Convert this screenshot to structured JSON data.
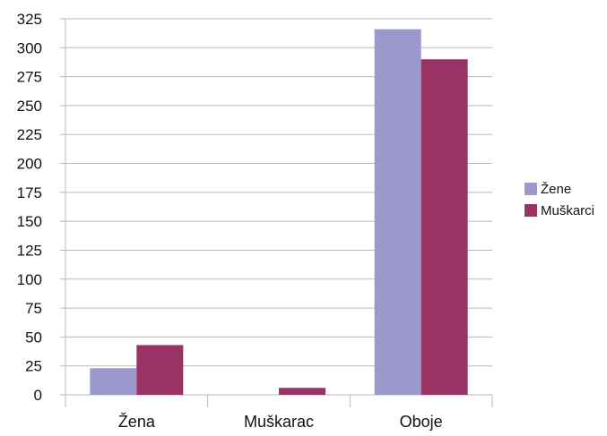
{
  "chart_data": {
    "type": "bar",
    "categories": [
      "Žena",
      "Muškarac",
      "Oboje"
    ],
    "series": [
      {
        "name": "Žene",
        "values": [
          23,
          0,
          316
        ],
        "color": "#9b99cc"
      },
      {
        "name": "Muškarci",
        "values": [
          43,
          6,
          290
        ],
        "color": "#993366"
      }
    ],
    "ylim": [
      0,
      325
    ],
    "yticks": [
      0,
      25,
      50,
      75,
      100,
      125,
      150,
      175,
      200,
      225,
      250,
      275,
      300,
      325
    ],
    "grid": true,
    "legend_position": "right"
  }
}
